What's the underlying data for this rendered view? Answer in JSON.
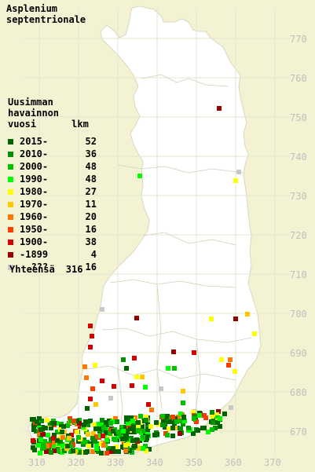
{
  "title_line1": "Asplenium",
  "title_line2": "septentrionale",
  "legend_head": [
    "Uusimman",
    "havainnon",
    "vuosi"
  ],
  "legend_count_head": "lkm",
  "legend": [
    {
      "label": "2015-",
      "count": "52",
      "color": "#006400"
    },
    {
      "label": "2010-",
      "count": "36",
      "color": "#009000"
    },
    {
      "label": "2000-",
      "count": "48",
      "color": "#00c000"
    },
    {
      "label": "1990-",
      "count": "48",
      "color": "#00ff00"
    },
    {
      "label": "1980-",
      "count": "27",
      "color": "#ffff00"
    },
    {
      "label": "1970-",
      "count": "11",
      "color": "#ffc800"
    },
    {
      "label": "1960-",
      "count": "20",
      "color": "#ff7800"
    },
    {
      "label": "1950-",
      "count": "16",
      "color": "#ff3c00"
    },
    {
      "label": "1900-",
      "count": "38",
      "color": "#d20000"
    },
    {
      "label": "-1899",
      "count": "4",
      "color": "#960000"
    },
    {
      "label": "???",
      "count": "16",
      "color": "#c8c8c8"
    }
  ],
  "total_label": "Yhteensä",
  "total_count": "316",
  "y_labels": [
    "770",
    "760",
    "750",
    "740",
    "730",
    "720",
    "710",
    "700",
    "690",
    "680",
    "670"
  ],
  "x_labels": [
    "310",
    "320",
    "330",
    "340",
    "350",
    "360",
    "370"
  ]
}
